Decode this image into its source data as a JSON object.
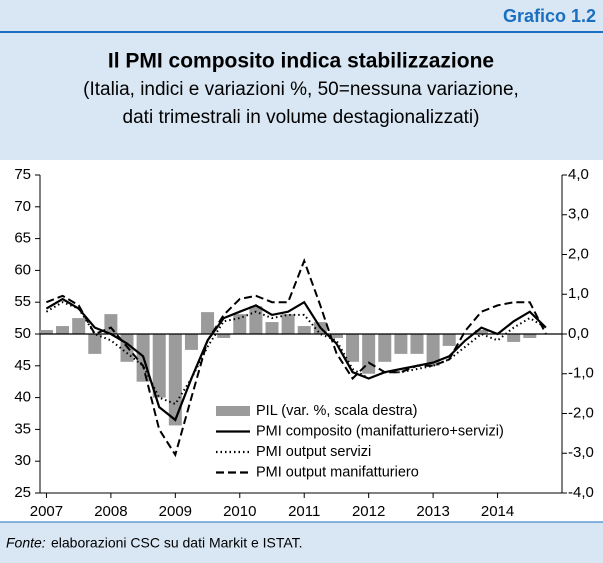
{
  "chart_data": {
    "type": "combo",
    "figure_label": "Grafico 1.2",
    "title": "Il PMI composito indica stabilizzazione",
    "subtitle": [
      "(Italia, indici e variazioni %, 50=nessuna variazione,",
      "dati trimestrali in volume destagionalizzati)"
    ],
    "x": [
      2007,
      2007.25,
      2007.5,
      2007.75,
      2008,
      2008.25,
      2008.5,
      2008.75,
      2009,
      2009.25,
      2009.5,
      2009.75,
      2010,
      2010.25,
      2010.5,
      2010.75,
      2011,
      2011.25,
      2011.5,
      2011.75,
      2012,
      2012.25,
      2012.5,
      2012.75,
      2013,
      2013.25,
      2013.5,
      2013.75,
      2014,
      2014.25,
      2014.5,
      2014.75
    ],
    "xlim": [
      2006.9,
      2015.0
    ],
    "xticks": [
      2007,
      2008,
      2009,
      2010,
      2011,
      2012,
      2013,
      2014
    ],
    "ylim": [
      25,
      75
    ],
    "yticks": [
      25,
      30,
      35,
      40,
      45,
      50,
      55,
      60,
      65,
      70,
      75
    ],
    "y2lim": [
      -4,
      4
    ],
    "y2ticks": [
      {
        "value": -4,
        "label": "-4,0"
      },
      {
        "value": -3,
        "label": "-3,0"
      },
      {
        "value": -2,
        "label": "-2,0"
      },
      {
        "value": -1,
        "label": "-1,0"
      },
      {
        "value": 0,
        "label": "0,0"
      },
      {
        "value": 1,
        "label": "1,0"
      },
      {
        "value": 2,
        "label": "2,0"
      },
      {
        "value": 3,
        "label": "3,0"
      },
      {
        "value": 4,
        "label": "4,0"
      }
    ],
    "reference_line": 50,
    "series": [
      {
        "name": "PIL (var. %, scala destra)",
        "type": "bar",
        "axis": "y2",
        "color": "#9b9b9b",
        "values": [
          0.1,
          0.2,
          0.4,
          -0.5,
          0.5,
          -0.7,
          -1.2,
          -1.6,
          -2.3,
          -0.4,
          0.55,
          -0.1,
          0.5,
          0.7,
          0.3,
          0.5,
          0.2,
          0.3,
          -0.1,
          -0.7,
          -1.0,
          -0.7,
          -0.5,
          -0.5,
          -0.8,
          -0.3,
          0.0,
          0.1,
          0.0,
          -0.2,
          -0.1,
          0.0
        ]
      },
      {
        "name": "PMI composito (manifatturiero+servizi)",
        "type": "line",
        "dash": "solid",
        "color": "#000000",
        "values": [
          54,
          55.5,
          54,
          51,
          50,
          48.5,
          46.5,
          38.5,
          36.5,
          43,
          49,
          52.5,
          53.5,
          54.5,
          53,
          53.5,
          55,
          51,
          48.5,
          44,
          43,
          44,
          44.5,
          45,
          45.5,
          46.5,
          49,
          51,
          50,
          52,
          53.5,
          51
        ]
      },
      {
        "name": "PMI output servizi",
        "type": "line",
        "dash": "dotted",
        "color": "#000000",
        "values": [
          53.5,
          55,
          54,
          50,
          49,
          47,
          45,
          40,
          39,
          43,
          48,
          52,
          52.5,
          53.5,
          52.5,
          53,
          53,
          50,
          49,
          44.5,
          43,
          44,
          44,
          44.5,
          45,
          46,
          48,
          50,
          49,
          51,
          52.5,
          51
        ]
      },
      {
        "name": "PMI output manifatturiero",
        "type": "line",
        "dash": "dashed",
        "color": "#000000",
        "values": [
          55,
          56,
          54.5,
          50,
          51,
          48,
          45,
          35,
          31,
          40,
          49,
          53,
          55.5,
          56,
          55,
          55,
          61.5,
          54.5,
          47,
          43,
          45.5,
          44,
          44,
          45,
          45,
          46,
          50.5,
          53.5,
          54.5,
          55,
          55,
          50
        ]
      }
    ],
    "source_label": "Fonte:",
    "source": "elaborazioni CSC su dati Markit e ISTAT."
  }
}
